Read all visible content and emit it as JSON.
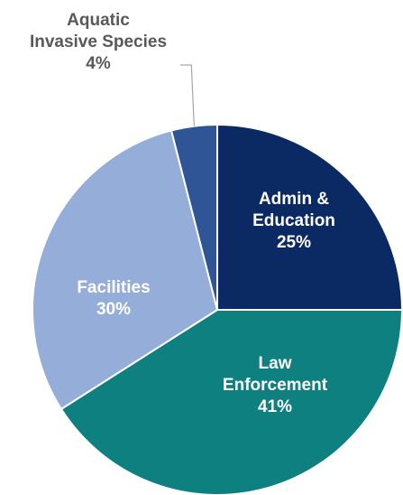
{
  "chart_data": {
    "type": "pie",
    "title": "",
    "start_angle_deg": 0,
    "direction": "clockwise",
    "slices": [
      {
        "name": "Admin & Education",
        "label_lines": [
          "Admin &",
          "Education"
        ],
        "pct_text": "25%",
        "value": 25,
        "color": "#0b2a63",
        "label_color": "#ffffff"
      },
      {
        "name": "Law Enforcement",
        "label_lines": [
          "Law",
          "Enforcement"
        ],
        "pct_text": "41%",
        "value": 41,
        "color": "#0e8080",
        "label_color": "#ffffff"
      },
      {
        "name": "Facilities",
        "label_lines": [
          "Facilities"
        ],
        "pct_text": "30%",
        "value": 30,
        "color": "#94add9",
        "label_color": "#ffffff"
      },
      {
        "name": "Aquatic Invasive Species",
        "label_lines": [
          "Aquatic",
          "Invasive Species"
        ],
        "pct_text": "4%",
        "value": 4,
        "color": "#2f5597",
        "label_color": "#595959",
        "label_outside": true
      }
    ]
  }
}
